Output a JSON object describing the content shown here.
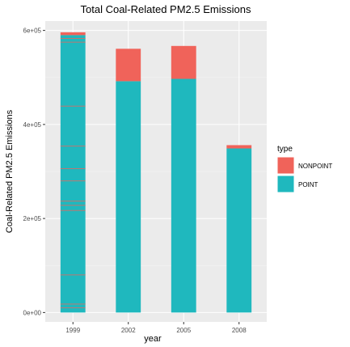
{
  "chart_data": {
    "type": "bar",
    "stacked": true,
    "title": "Total Coal-Related PM2.5 Emissions",
    "xlabel": "year",
    "ylabel": "Coal-Related PM2.5 Emissions",
    "categories": [
      "1999",
      "2002",
      "2005",
      "2008"
    ],
    "y_ticks": [
      0,
      200000,
      400000,
      600000
    ],
    "y_tick_labels": [
      "0e+00",
      "2e+05",
      "4e+05",
      "6e+05"
    ],
    "ylim": [
      -20000,
      620000
    ],
    "series": [
      {
        "name": "POINT",
        "color": "#1fb8be",
        "values": [
          590000,
          492000,
          497000,
          349000
        ]
      },
      {
        "name": "NONPOINT",
        "color": "#f0635a",
        "values": [
          6000,
          69000,
          70000,
          7000
        ]
      }
    ],
    "segment_boundaries_1999": [
      10000,
      18000,
      80000,
      217000,
      228000,
      237000,
      280000,
      306000,
      354000,
      439000,
      575000,
      583000
    ],
    "legend": {
      "title": "type",
      "position": "right",
      "entries": [
        "NONPOINT",
        "POINT"
      ]
    },
    "grid": true,
    "panel_background": "#ebebeb"
  }
}
